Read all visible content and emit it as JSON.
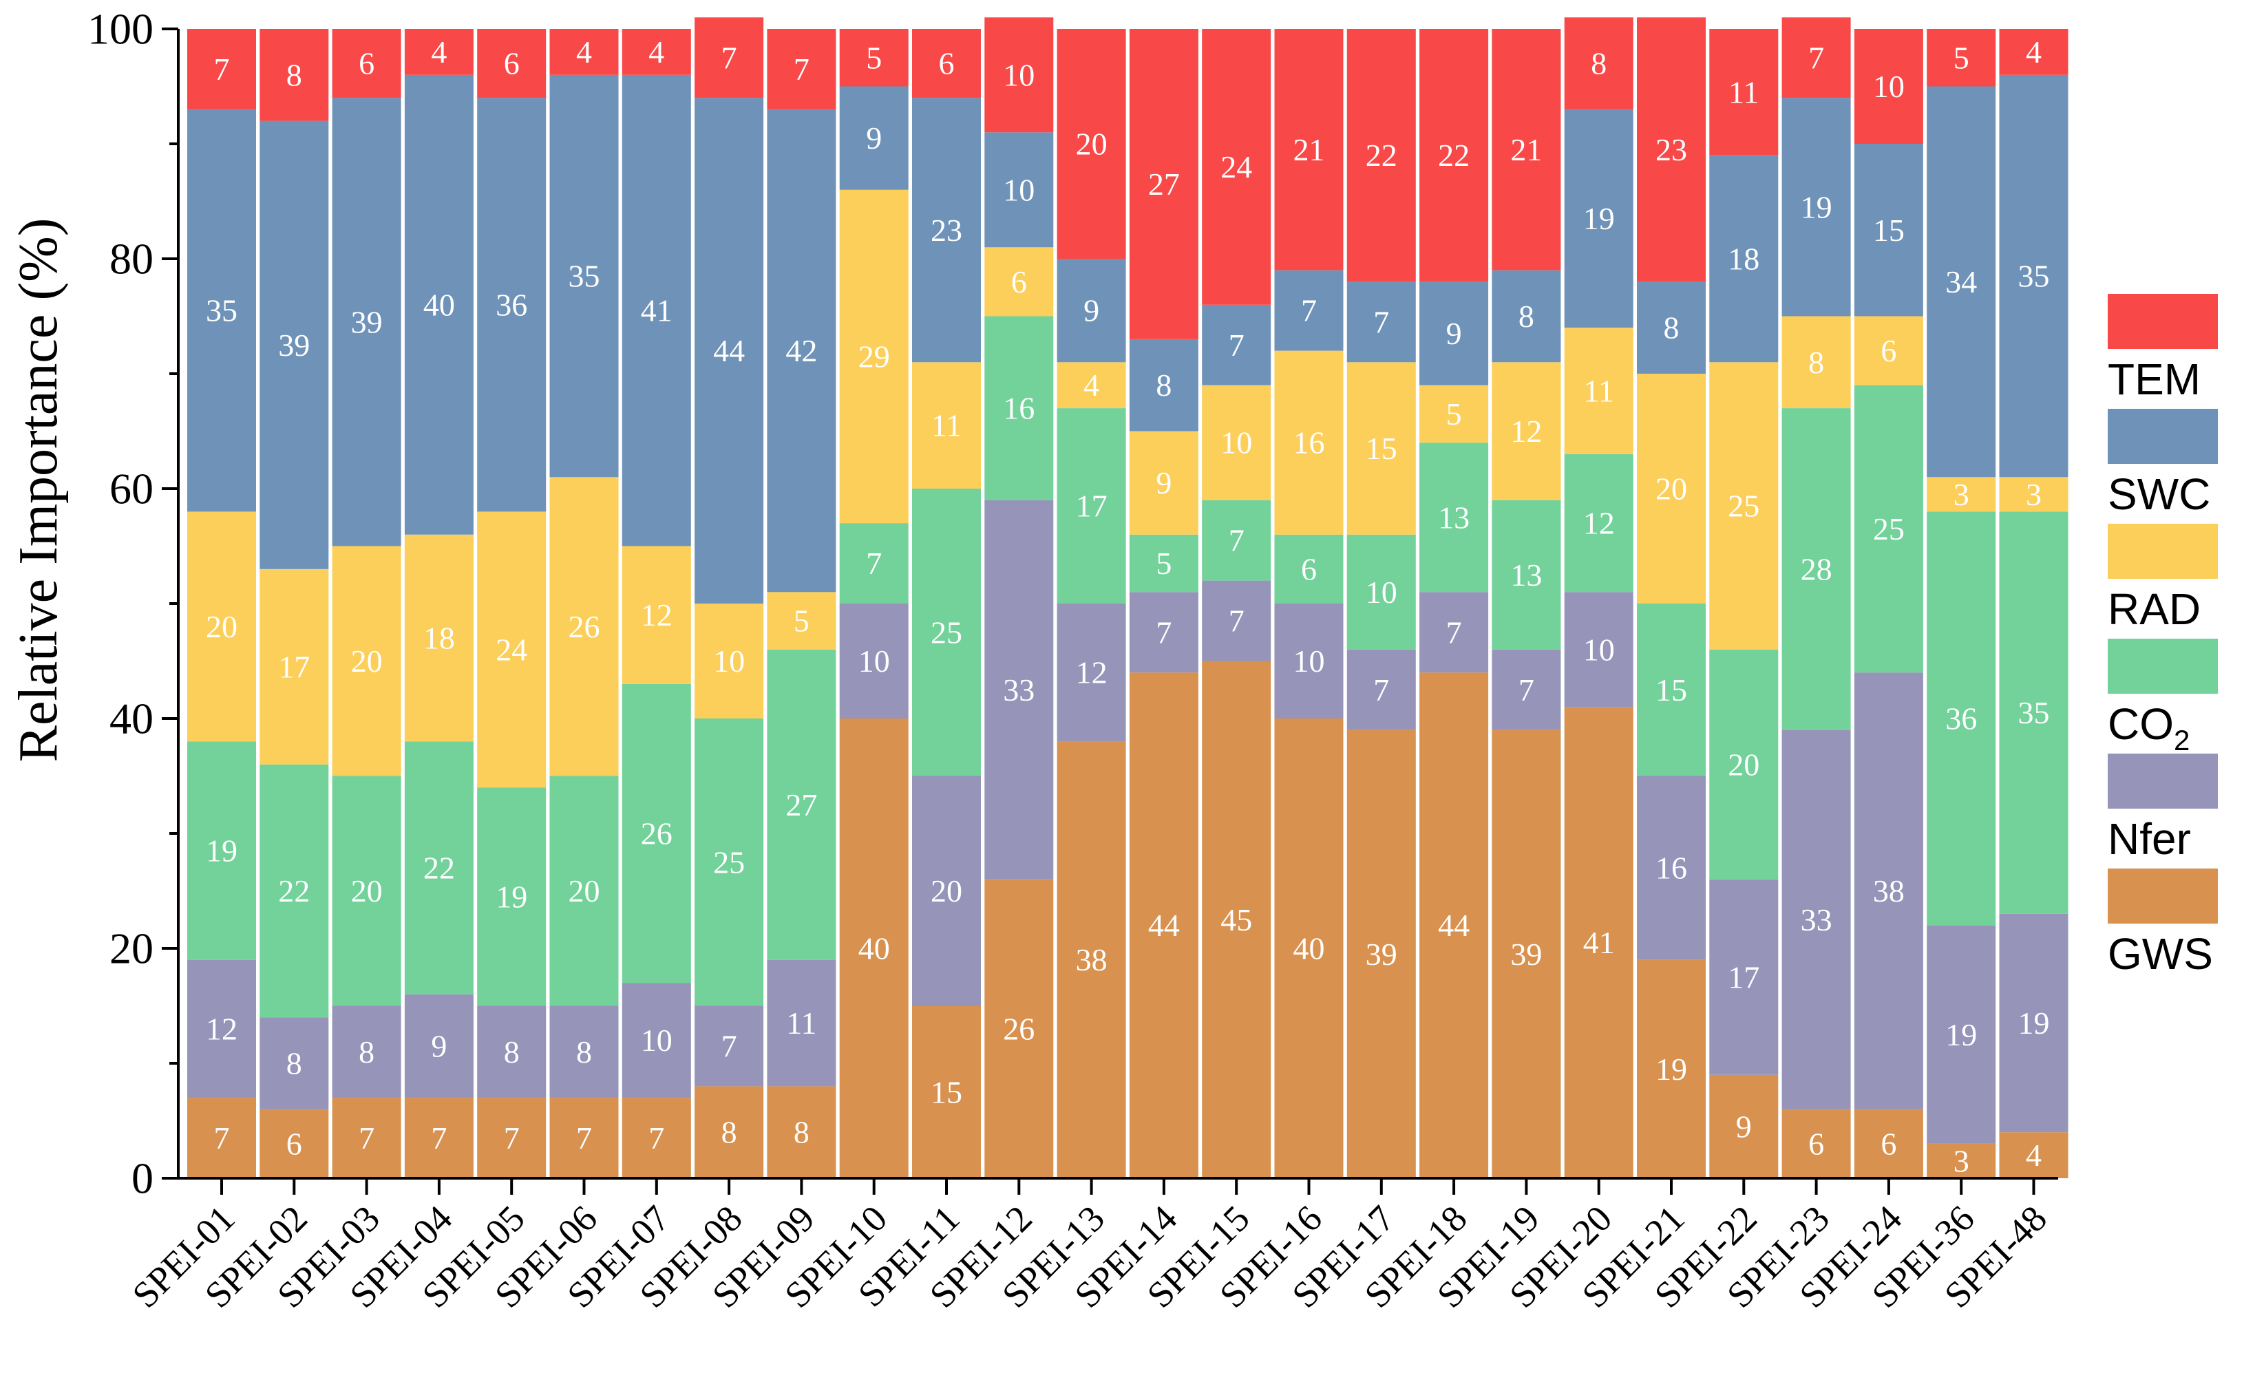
{
  "chart_data": {
    "type": "bar",
    "stacked": true,
    "categories": [
      "SPEI-01",
      "SPEI-02",
      "SPEI-03",
      "SPEI-04",
      "SPEI-05",
      "SPEI-06",
      "SPEI-07",
      "SPEI-08",
      "SPEI-09",
      "SPEI-10",
      "SPEI-11",
      "SPEI-12",
      "SPEI-13",
      "SPEI-14",
      "SPEI-15",
      "SPEI-16",
      "SPEI-17",
      "SPEI-18",
      "SPEI-19",
      "SPEI-20",
      "SPEI-21",
      "SPEI-22",
      "SPEI-23",
      "SPEI-24",
      "SPEI-36",
      "SPEI-48"
    ],
    "series": [
      {
        "name": "GWS",
        "color": "#D8914E",
        "values": [
          7,
          6,
          7,
          7,
          7,
          7,
          7,
          8,
          8,
          40,
          15,
          26,
          38,
          44,
          45,
          40,
          39,
          44,
          39,
          41,
          19,
          9,
          6,
          6,
          3,
          4
        ]
      },
      {
        "name": "Nfer",
        "color": "#9694B9",
        "values": [
          12,
          8,
          8,
          9,
          8,
          8,
          10,
          7,
          11,
          10,
          20,
          33,
          12,
          7,
          7,
          10,
          7,
          7,
          7,
          10,
          16,
          17,
          33,
          38,
          19,
          19
        ]
      },
      {
        "name": "CO2",
        "color": "#72D29A",
        "values": [
          19,
          22,
          20,
          22,
          19,
          20,
          26,
          25,
          27,
          7,
          25,
          16,
          17,
          5,
          7,
          6,
          10,
          13,
          13,
          12,
          15,
          20,
          28,
          25,
          36,
          35
        ]
      },
      {
        "name": "RAD",
        "color": "#FCCF5B",
        "values": [
          20,
          17,
          20,
          18,
          24,
          26,
          12,
          10,
          5,
          29,
          11,
          6,
          4,
          9,
          10,
          16,
          15,
          5,
          12,
          11,
          20,
          25,
          8,
          6,
          3,
          3
        ]
      },
      {
        "name": "SWC",
        "color": "#6F93B8",
        "values": [
          35,
          39,
          39,
          40,
          36,
          35,
          41,
          44,
          42,
          9,
          23,
          10,
          9,
          8,
          7,
          7,
          7,
          9,
          8,
          19,
          8,
          18,
          19,
          15,
          34,
          35
        ]
      },
      {
        "name": "TEM",
        "color": "#F94848",
        "values": [
          7,
          8,
          6,
          4,
          6,
          4,
          4,
          7,
          7,
          5,
          6,
          10,
          20,
          27,
          24,
          21,
          22,
          22,
          21,
          8,
          23,
          11,
          7,
          10,
          5,
          4
        ]
      }
    ],
    "legend_order": [
      "TEM",
      "SWC",
      "RAD",
      "CO2",
      "Nfer",
      "GWS"
    ],
    "legend_labels": {
      "TEM": "TEM",
      "SWC": "SWC",
      "RAD": "RAD",
      "CO2": "CO",
      "CO2_sub": "2",
      "Nfer": "Nfer",
      "GWS": "GWS"
    },
    "title": "",
    "xlabel": "",
    "ylabel": "Relative Importance (%)",
    "ylim": [
      0,
      100
    ],
    "yticks": [
      0,
      20,
      40,
      60,
      80,
      100
    ],
    "legend_position": "right",
    "grid": false
  }
}
